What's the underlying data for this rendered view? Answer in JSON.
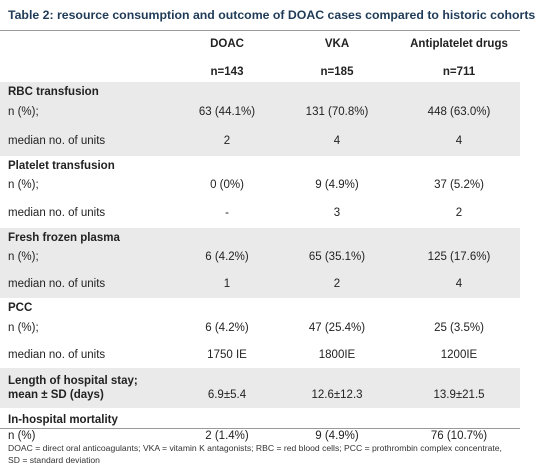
{
  "title": "Table 2:  resource consumption and outcome of DOAC cases compared to historic cohorts",
  "columns": [
    {
      "name": "DOAC",
      "n": "n=143"
    },
    {
      "name": "VKA",
      "n": "n=185"
    },
    {
      "name": "Antiplatelet drugs",
      "n": "n=711"
    }
  ],
  "sections": {
    "rbc": {
      "label": "RBC transfusion",
      "n_label": "n (%);",
      "n_values": [
        "63 (44.1%)",
        "131 (70.8%)",
        "448 (63.0%)"
      ],
      "median_label": "median no. of units",
      "median_values": [
        "2",
        "4",
        "4"
      ]
    },
    "platelet": {
      "label": "Platelet transfusion",
      "n_label": "n (%);",
      "n_values": [
        "0 (0%)",
        "9 (4.9%)",
        "37 (5.2%)"
      ],
      "median_label": "median no. of units",
      "median_values": [
        "-",
        "3",
        "2"
      ]
    },
    "ffp": {
      "label": "Fresh frozen plasma",
      "n_label": "n (%);",
      "n_values": [
        "6 (4.2%)",
        "65 (35.1%)",
        "125 (17.6%)"
      ],
      "median_label": "median no. of units",
      "median_values": [
        "1",
        "2",
        "4"
      ]
    },
    "pcc": {
      "label": "PCC",
      "n_label": "n (%);",
      "n_values": [
        "6 (4.2%)",
        "47 (25.4%)",
        "25 (3.5%)"
      ],
      "median_label": "median no. of units",
      "median_values": [
        "1750 IE",
        "1800IE",
        "1200IE"
      ]
    },
    "stay": {
      "label_line1": "Length of hospital stay;",
      "label_line2": "mean ± SD (days)",
      "values": [
        "6.9±5.4",
        "12.6±12.3",
        "13.9±21.5"
      ]
    },
    "mortality": {
      "label": "In-hospital mortality",
      "n_label": "n (%)",
      "values": [
        "2 (1.4%)",
        "9 (4.9%)",
        "76 (10.7%)"
      ]
    }
  },
  "footnote": "DOAC = direct oral anticoagulants; VKA = vitamin K antagonists; RBC = red blood cells; PCC = prothrombin complex concentrate, SD = standard deviation"
}
